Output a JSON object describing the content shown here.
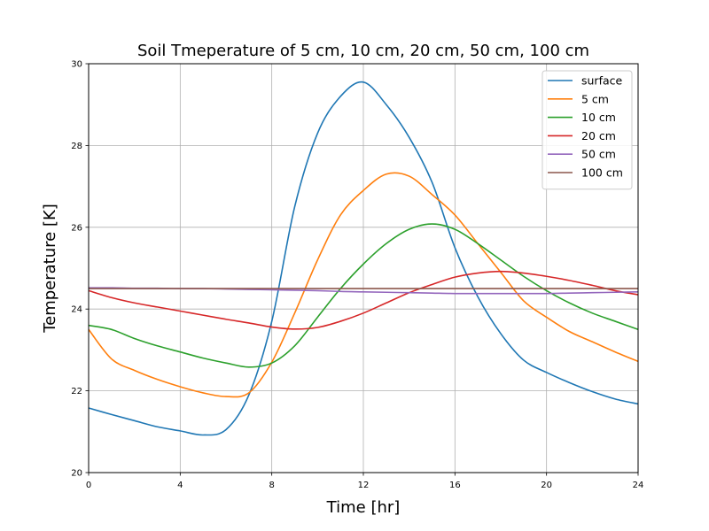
{
  "chart_data": {
    "type": "line",
    "title": "Soil Tmeperature of 5 cm, 10 cm, 20 cm, 50 cm, 100 cm",
    "xlabel": "Time [hr]",
    "ylabel": "Temperature [K]",
    "xlim": [
      0,
      24
    ],
    "ylim": [
      20,
      30
    ],
    "xticks": [
      0,
      4,
      8,
      12,
      16,
      20,
      24
    ],
    "yticks": [
      20,
      22,
      24,
      26,
      28,
      30
    ],
    "grid": true,
    "legend_position": "top-right",
    "x": [
      0,
      1,
      2,
      3,
      4,
      5,
      6,
      7,
      8,
      9,
      10,
      11,
      12,
      13,
      14,
      15,
      16,
      17,
      18,
      19,
      20,
      21,
      22,
      23,
      24
    ],
    "series": [
      {
        "name": "surface",
        "color": "#1f77b4",
        "values": [
          21.58,
          21.42,
          21.27,
          21.12,
          21.02,
          20.92,
          21.05,
          21.9,
          23.7,
          26.5,
          28.3,
          29.2,
          29.55,
          29.0,
          28.2,
          27.1,
          25.5,
          24.3,
          23.4,
          22.75,
          22.45,
          22.2,
          21.98,
          21.8,
          21.68
        ]
      },
      {
        "name": "5 cm",
        "color": "#ff7f0e",
        "values": [
          23.5,
          22.78,
          22.5,
          22.28,
          22.1,
          21.95,
          21.86,
          21.95,
          22.7,
          23.9,
          25.2,
          26.3,
          26.9,
          27.3,
          27.25,
          26.8,
          26.3,
          25.6,
          24.9,
          24.2,
          23.8,
          23.45,
          23.2,
          22.95,
          22.72
        ]
      },
      {
        "name": "10 cm",
        "color": "#2ca02c",
        "values": [
          23.6,
          23.5,
          23.28,
          23.1,
          22.95,
          22.8,
          22.68,
          22.58,
          22.68,
          23.1,
          23.8,
          24.5,
          25.1,
          25.6,
          25.95,
          26.08,
          25.95,
          25.6,
          25.2,
          24.8,
          24.45,
          24.15,
          23.9,
          23.7,
          23.5
        ]
      },
      {
        "name": "20 cm",
        "color": "#d62728",
        "values": [
          24.45,
          24.28,
          24.15,
          24.05,
          23.95,
          23.85,
          23.75,
          23.66,
          23.56,
          23.51,
          23.55,
          23.7,
          23.9,
          24.15,
          24.4,
          24.6,
          24.78,
          24.88,
          24.92,
          24.88,
          24.8,
          24.7,
          24.58,
          24.45,
          24.35
        ]
      },
      {
        "name": "50 cm",
        "color": "#9467bd",
        "values": [
          24.52,
          24.52,
          24.51,
          24.51,
          24.5,
          24.5,
          24.49,
          24.48,
          24.47,
          24.46,
          24.45,
          24.43,
          24.42,
          24.41,
          24.4,
          24.39,
          24.38,
          24.38,
          24.38,
          24.38,
          24.38,
          24.39,
          24.4,
          24.41,
          24.42
        ]
      },
      {
        "name": "100 cm",
        "color": "#8c564b",
        "values": [
          24.5,
          24.5,
          24.5,
          24.5,
          24.5,
          24.5,
          24.5,
          24.5,
          24.5,
          24.5,
          24.5,
          24.5,
          24.5,
          24.5,
          24.5,
          24.5,
          24.5,
          24.5,
          24.5,
          24.5,
          24.5,
          24.5,
          24.5,
          24.5,
          24.5
        ]
      }
    ]
  }
}
